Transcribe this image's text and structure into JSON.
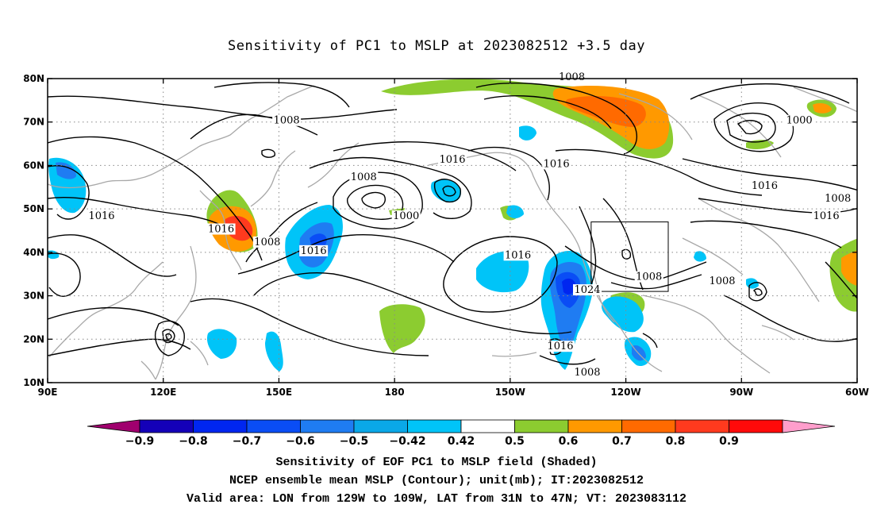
{
  "title": "Sensitivity of PC1 to MSLP at 2023082512 +3.5 day",
  "captions": [
    "Sensitivity of EOF PC1 to MSLP field (Shaded)",
    "NCEP ensemble mean MSLP (Contour); unit(mb); IT:2023082512",
    "Valid area: LON from 129W to 109W, LAT from 31N to 47N; VT: 2023083112"
  ],
  "map": {
    "lon_range": [
      90,
      300
    ],
    "lat_range": [
      10,
      80
    ],
    "x_ticks": [
      {
        "lon": 90,
        "label": "90E"
      },
      {
        "lon": 120,
        "label": "120E"
      },
      {
        "lon": 150,
        "label": "150E"
      },
      {
        "lon": 180,
        "label": "180"
      },
      {
        "lon": 210,
        "label": "150W"
      },
      {
        "lon": 240,
        "label": "120W"
      },
      {
        "lon": 270,
        "label": "90W"
      },
      {
        "lon": 300,
        "label": "60W"
      }
    ],
    "y_ticks": [
      {
        "lat": 10,
        "label": "10N"
      },
      {
        "lat": 20,
        "label": "20N"
      },
      {
        "lat": 30,
        "label": "30N"
      },
      {
        "lat": 40,
        "label": "40N"
      },
      {
        "lat": 50,
        "label": "50N"
      },
      {
        "lat": 60,
        "label": "60N"
      },
      {
        "lat": 70,
        "label": "70N"
      },
      {
        "lat": 80,
        "label": "80N"
      }
    ],
    "grid": "dotted",
    "valid_area": {
      "lon": [
        231,
        251
      ],
      "lat": [
        31,
        47
      ]
    },
    "contour_labels": [
      {
        "lon": 152,
        "lat": 70,
        "text": "1008"
      },
      {
        "lon": 226,
        "lat": 80,
        "text": "1008"
      },
      {
        "lon": 195,
        "lat": 61,
        "text": "1016"
      },
      {
        "lon": 222,
        "lat": 60,
        "text": "1016"
      },
      {
        "lon": 285,
        "lat": 70,
        "text": "1000"
      },
      {
        "lon": 172,
        "lat": 57,
        "text": "1008"
      },
      {
        "lon": 183,
        "lat": 48,
        "text": "1000"
      },
      {
        "lon": 104,
        "lat": 48,
        "text": "1016"
      },
      {
        "lon": 135,
        "lat": 45,
        "text": "1016"
      },
      {
        "lon": 147,
        "lat": 42,
        "text": "1008"
      },
      {
        "lon": 159,
        "lat": 40,
        "text": "1016"
      },
      {
        "lon": 212,
        "lat": 39,
        "text": "1016"
      },
      {
        "lon": 230,
        "lat": 31,
        "text": "1024"
      },
      {
        "lon": 223,
        "lat": 18,
        "text": "1016"
      },
      {
        "lon": 246,
        "lat": 34,
        "text": "1008"
      },
      {
        "lon": 265,
        "lat": 33,
        "text": "1008"
      },
      {
        "lon": 276,
        "lat": 55,
        "text": "1016"
      },
      {
        "lon": 295,
        "lat": 52,
        "text": "1008"
      },
      {
        "lon": 292,
        "lat": 48,
        "text": "1016"
      },
      {
        "lon": 230,
        "lat": 12,
        "text": "1008"
      }
    ]
  },
  "colorbar": {
    "labels": [
      "-0.9",
      "-0.8",
      "-0.7",
      "-0.6",
      "-0.5",
      "-0.42",
      "0.42",
      "0.5",
      "0.6",
      "0.7",
      "0.8",
      "0.9"
    ],
    "colors": [
      "#a0006e",
      "#1400b8",
      "#0026f0",
      "#0a4df5",
      "#1f7cf2",
      "#0aa8e8",
      "#00c4f8",
      "#ffffff",
      "#8ccc30",
      "#ff9900",
      "#ff6a00",
      "#ff3a1e",
      "#ff0a0a",
      "#ff9ecc"
    ]
  }
}
